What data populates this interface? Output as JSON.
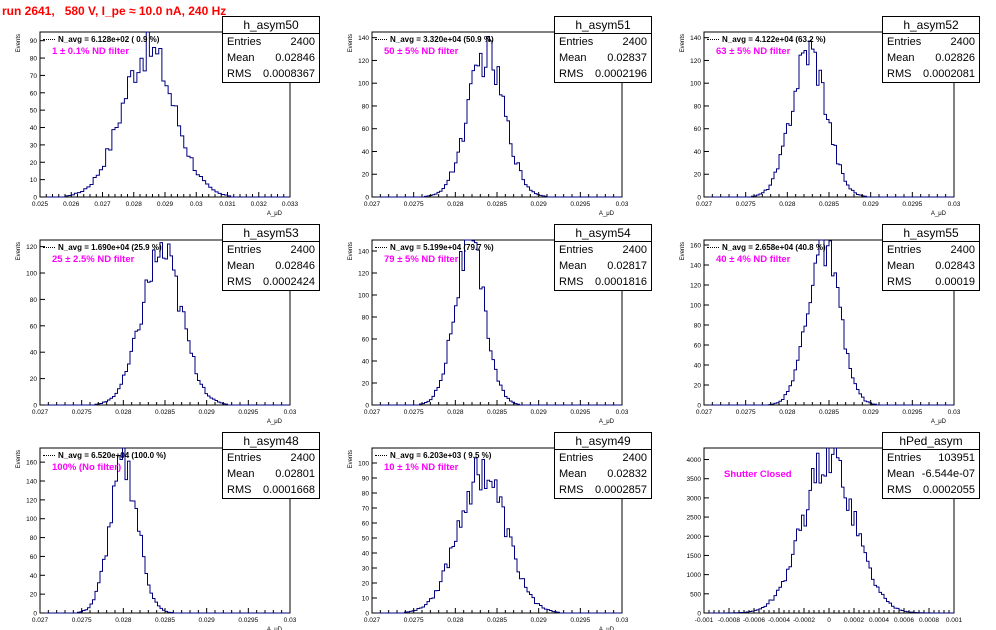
{
  "run_title": "run 2641,   580 V, I_pe ≈ 10.0 nA, 240 Hz",
  "colors": {
    "title": "#ff0000",
    "note": "#ff00ff",
    "hist": "#000080"
  },
  "panels": [
    {
      "id": "p50",
      "hname": "h_asym50",
      "stats": {
        "entries_label": "Entries",
        "entries": "2400",
        "mean_label": "Mean",
        "mean": "0.02846",
        "rms_label": "RMS",
        "rms": "0.0008367"
      },
      "navg": "N_avg = 6.128e+02 ( 0.9 %)",
      "note": "1 ± 0.1% ND filter",
      "ylabel": "Events",
      "xlabel": "A_μD"
    },
    {
      "id": "p51",
      "hname": "h_asym51",
      "stats": {
        "entries_label": "Entries",
        "entries": "2400",
        "mean_label": "Mean",
        "mean": "0.02837",
        "rms_label": "RMS",
        "rms": "0.0002196"
      },
      "navg": "N_avg = 3.320e+04 (50.9 %)",
      "note": "50 ± 5% ND filter",
      "ylabel": "Events",
      "xlabel": "A_μD"
    },
    {
      "id": "p52",
      "hname": "h_asym52",
      "stats": {
        "entries_label": "Entries",
        "entries": "2400",
        "mean_label": "Mean",
        "mean": "0.02826",
        "rms_label": "RMS",
        "rms": "0.0002081"
      },
      "navg": "N_avg = 4.122e+04 (63.2 %)",
      "note": "63 ± 5% ND filter",
      "ylabel": "Events",
      "xlabel": "A_μD"
    },
    {
      "id": "p53",
      "hname": "h_asym53",
      "stats": {
        "entries_label": "Entries",
        "entries": "2400",
        "mean_label": "Mean",
        "mean": "0.02846",
        "rms_label": "RMS",
        "rms": "0.0002424"
      },
      "navg": "N_avg = 1.690e+04 (25.9 %)",
      "note": "25 ± 2.5% ND filter",
      "ylabel": "Events",
      "xlabel": "A_μD"
    },
    {
      "id": "p54",
      "hname": "h_asym54",
      "stats": {
        "entries_label": "Entries",
        "entries": "2400",
        "mean_label": "Mean",
        "mean": "0.02817",
        "rms_label": "RMS",
        "rms": "0.0001816"
      },
      "navg": "N_avg = 5.199e+04 (79.7 %)",
      "note": "79 ± 5% ND filter",
      "ylabel": "Events",
      "xlabel": "A_μD"
    },
    {
      "id": "p55",
      "hname": "h_asym55",
      "stats": {
        "entries_label": "Entries",
        "entries": "2400",
        "mean_label": "Mean",
        "mean": "0.02843",
        "rms_label": "RMS",
        "rms": "0.00019"
      },
      "navg": "N_avg = 2.658e+04 (40.8 %)",
      "note": "40 ± 4% ND filter",
      "ylabel": "Events",
      "xlabel": "A_μD"
    },
    {
      "id": "p48",
      "hname": "h_asym48",
      "stats": {
        "entries_label": "Entries",
        "entries": "2400",
        "mean_label": "Mean",
        "mean": "0.02801",
        "rms_label": "RMS",
        "rms": "0.0001668"
      },
      "navg": "N_avg = 6.520e+04 (100.0 %)",
      "note": "100% (No filter)",
      "ylabel": "Events",
      "xlabel": "A_μD"
    },
    {
      "id": "p49",
      "hname": "h_asym49",
      "stats": {
        "entries_label": "Entries",
        "entries": "2400",
        "mean_label": "Mean",
        "mean": "0.02832",
        "rms_label": "RMS",
        "rms": "0.0002857"
      },
      "navg": "N_avg = 6.203e+03 ( 9.5 %)",
      "note": "10 ± 1% ND filter",
      "ylabel": "Events",
      "xlabel": "A_μD"
    },
    {
      "id": "ped",
      "hname": "hPed_asym",
      "stats": {
        "entries_label": "Entries",
        "entries": "103951",
        "mean_label": "Mean",
        "mean": "-6.544e-07",
        "rms_label": "RMS",
        "rms": "0.0002055"
      },
      "navg": "",
      "note": "Shutter Closed",
      "ylabel": "",
      "xlabel": ""
    }
  ],
  "chart_data": [
    {
      "type": "histogram",
      "title": "h_asym50",
      "xlim": [
        0.025,
        0.033
      ],
      "ylim": [
        0,
        95
      ],
      "xticks": [
        "0.025",
        "0.026",
        "0.027",
        "0.028",
        "0.029",
        "0.03",
        "0.031",
        "0.032",
        "0.033"
      ],
      "yticks": [
        "0",
        "10",
        "20",
        "30",
        "40",
        "50",
        "60",
        "70",
        "80",
        "90"
      ],
      "mean": 0.02846,
      "rms": 0.0008367,
      "peak": 85,
      "nbins": 80
    },
    {
      "type": "histogram",
      "title": "h_asym51",
      "xlim": [
        0.027,
        0.03
      ],
      "ylim": [
        0,
        145
      ],
      "xticks": [
        "0.027",
        "0.0275",
        "0.028",
        "0.0285",
        "0.029",
        "0.0295",
        "0.03"
      ],
      "yticks": [
        "0",
        "20",
        "40",
        "60",
        "80",
        "100",
        "120",
        "140"
      ],
      "mean": 0.02837,
      "rms": 0.0002196,
      "peak": 125,
      "nbins": 100
    },
    {
      "type": "histogram",
      "title": "h_asym52",
      "xlim": [
        0.027,
        0.03
      ],
      "ylim": [
        0,
        145
      ],
      "xticks": [
        "0.027",
        "0.0275",
        "0.028",
        "0.0285",
        "0.029",
        "0.0295",
        "0.03"
      ],
      "yticks": [
        "0",
        "20",
        "40",
        "60",
        "80",
        "100",
        "120",
        "140"
      ],
      "mean": 0.02826,
      "rms": 0.0002081,
      "peak": 130,
      "nbins": 100
    },
    {
      "type": "histogram",
      "title": "h_asym53",
      "xlim": [
        0.027,
        0.03
      ],
      "ylim": [
        0,
        125
      ],
      "xticks": [
        "0.027",
        "0.0275",
        "0.028",
        "0.0285",
        "0.029",
        "0.0295",
        "0.03"
      ],
      "yticks": [
        "0",
        "20",
        "40",
        "60",
        "80",
        "100",
        "120"
      ],
      "mean": 0.02846,
      "rms": 0.0002424,
      "peak": 115,
      "nbins": 100
    },
    {
      "type": "histogram",
      "title": "h_asym54",
      "xlim": [
        0.027,
        0.03
      ],
      "ylim": [
        0,
        150
      ],
      "xticks": [
        "0.027",
        "0.0275",
        "0.028",
        "0.0285",
        "0.029",
        "0.0295",
        "0.03"
      ],
      "yticks": [
        "0",
        "20",
        "40",
        "60",
        "80",
        "100",
        "120",
        "140"
      ],
      "mean": 0.02817,
      "rms": 0.0001816,
      "peak": 145,
      "nbins": 100
    },
    {
      "type": "histogram",
      "title": "h_asym55",
      "xlim": [
        0.027,
        0.03
      ],
      "ylim": [
        0,
        165
      ],
      "xticks": [
        "0.027",
        "0.0275",
        "0.028",
        "0.0285",
        "0.029",
        "0.0295",
        "0.03"
      ],
      "yticks": [
        "0",
        "20",
        "40",
        "60",
        "80",
        "100",
        "120",
        "140",
        "160"
      ],
      "mean": 0.02843,
      "rms": 0.00019,
      "peak": 160,
      "nbins": 100
    },
    {
      "type": "histogram",
      "title": "h_asym48",
      "xlim": [
        0.027,
        0.03
      ],
      "ylim": [
        0,
        175
      ],
      "xticks": [
        "0.027",
        "0.0275",
        "0.028",
        "0.0285",
        "0.029",
        "0.0295",
        "0.03"
      ],
      "yticks": [
        "0",
        "20",
        "40",
        "60",
        "80",
        "100",
        "120",
        "140",
        "160"
      ],
      "mean": 0.02801,
      "rms": 0.0001668,
      "peak": 158,
      "nbins": 100
    },
    {
      "type": "histogram",
      "title": "h_asym49",
      "xlim": [
        0.027,
        0.03
      ],
      "ylim": [
        0,
        110
      ],
      "xticks": [
        "0.027",
        "0.0275",
        "0.028",
        "0.0285",
        "0.029",
        "0.0295",
        "0.03"
      ],
      "yticks": [
        "0",
        "10",
        "20",
        "30",
        "40",
        "50",
        "60",
        "70",
        "80",
        "90",
        "100"
      ],
      "mean": 0.02832,
      "rms": 0.0002857,
      "peak": 95,
      "nbins": 100
    },
    {
      "type": "histogram",
      "title": "hPed_asym",
      "xlim": [
        -0.001,
        0.001
      ],
      "ylim": [
        0,
        4300
      ],
      "xticks": [
        "-0.001",
        "-0.0008",
        "-0.0006",
        "-0.0004",
        "-0.0002",
        "0",
        "0.0002",
        "0.0004",
        "0.0006",
        "0.0008",
        "0.001"
      ],
      "yticks": [
        "0",
        "500",
        "1000",
        "1500",
        "2000",
        "2500",
        "3000",
        "3500",
        "4000"
      ],
      "mean": -6.544e-07,
      "rms": 0.0002055,
      "peak": 4050,
      "nbins": 100
    }
  ]
}
